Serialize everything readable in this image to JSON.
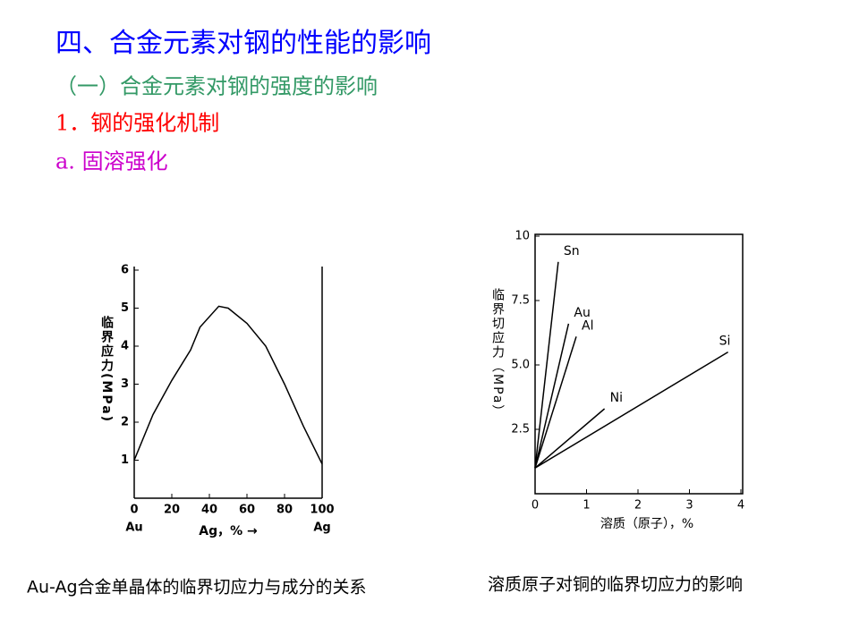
{
  "slide": {
    "title": "四、合金元素对钢的性能的影响",
    "subtitle": "（一）合金元素对钢的强度的影响",
    "section": "1．钢的强化机制",
    "subsection": "a. 固溶强化"
  },
  "chart_data": [
    {
      "type": "line",
      "caption": "Au-Ag合金单晶体的临界切应力与成分的关系",
      "x_label": "Ag，% →",
      "y_label": "临界应力(MPa)",
      "x_end_labels": [
        "Au",
        "Ag"
      ],
      "color": "#000000",
      "x": [
        0,
        10,
        20,
        30,
        35,
        45,
        50,
        60,
        70,
        80,
        90,
        100
      ],
      "values": [
        1.0,
        2.2,
        3.1,
        3.9,
        4.5,
        5.05,
        5.0,
        4.6,
        4.0,
        3.0,
        1.9,
        0.9
      ],
      "xlim": [
        0,
        100
      ],
      "ylim": [
        0,
        6
      ],
      "xticks": [
        0,
        20,
        40,
        60,
        80,
        100
      ],
      "yticks": [
        1,
        2,
        3,
        4,
        5,
        6
      ]
    },
    {
      "type": "line",
      "caption": "溶质原子对铜的临界切应力的影响",
      "x_label": "溶质（原子），%",
      "y_label": "临界切应力（MPa）",
      "series": [
        {
          "name": "Sn",
          "color": "#000000",
          "x": [
            0,
            0.45
          ],
          "values": [
            1.0,
            9.0
          ]
        },
        {
          "name": "Au",
          "color": "#000000",
          "x": [
            0,
            0.65
          ],
          "values": [
            1.0,
            6.6
          ]
        },
        {
          "name": "Al",
          "color": "#000000",
          "x": [
            0,
            0.8
          ],
          "values": [
            1.0,
            6.1
          ]
        },
        {
          "name": "Ni",
          "color": "#000000",
          "x": [
            0,
            1.35
          ],
          "values": [
            1.0,
            3.3
          ]
        },
        {
          "name": "Si",
          "color": "#000000",
          "x": [
            0,
            3.75
          ],
          "values": [
            1.0,
            5.5
          ]
        }
      ],
      "xlim": [
        0,
        4
      ],
      "ylim": [
        0,
        10
      ],
      "xticks": [
        0,
        1,
        2,
        3,
        4
      ],
      "yticks": [
        2.5,
        {
          "value": 5,
          "label": "5.0"
        },
        7.5,
        10
      ]
    }
  ]
}
